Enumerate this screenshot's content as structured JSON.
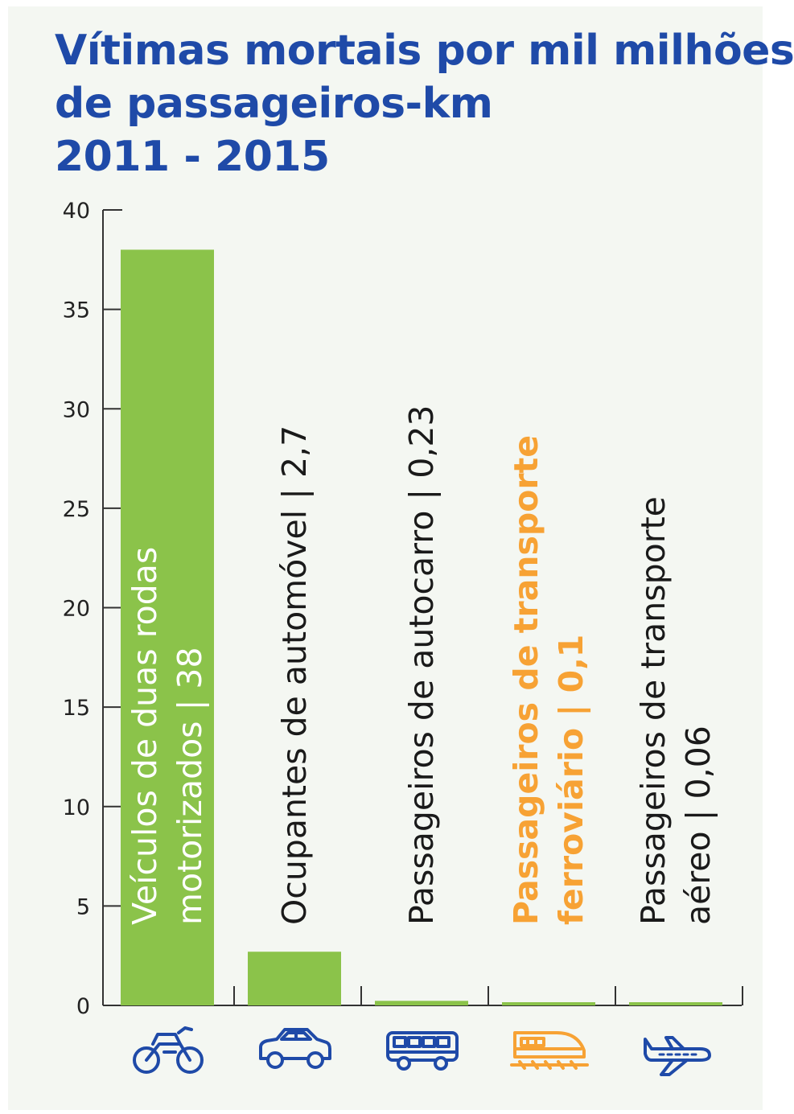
{
  "title_lines": [
    "Vítimas mortais por mil milhões",
    "de passageiros-km",
    "2011 - 2015"
  ],
  "colors": {
    "title": "#1f4aa8",
    "bar": "#8bc34a",
    "text": "#1a1a1a",
    "highlight": "#f7a234",
    "icon_blue": "#1f4aa8",
    "icon_orange": "#f7a234",
    "axis": "#333333",
    "panel": "#f4f7f2"
  },
  "chart_data": {
    "type": "bar",
    "title": "Vítimas mortais por mil milhões de passageiros-km 2011 - 2015",
    "categories": [
      "Veículos de duas rodas motorizados",
      "Ocupantes de automóvel",
      "Passageiros de autocarro",
      "Passageiros de transporte ferroviário",
      "Passageiros de transporte aéreo"
    ],
    "values": [
      38,
      2.7,
      0.23,
      0.1,
      0.06
    ],
    "bar_label_lines": [
      [
        "Veículos de duas rodas",
        "motorizados | 38"
      ],
      [
        "Ocupantes de automóvel | 2,7"
      ],
      [
        "Passageiros de autocarro | 0,23"
      ],
      [
        "Passageiros de transporte",
        "ferroviário | 0,1"
      ],
      [
        "Passageiros de transporte",
        "aéreo | 0,06"
      ]
    ],
    "highlight_index": 3,
    "ylim": [
      0,
      40
    ],
    "yticks": [
      0,
      5,
      10,
      15,
      20,
      25,
      30,
      35,
      40
    ],
    "xlabel": "",
    "ylabel": "",
    "grid": false,
    "icons": [
      "motorcycle-icon",
      "car-icon",
      "bus-icon",
      "train-icon",
      "airplane-icon"
    ]
  }
}
